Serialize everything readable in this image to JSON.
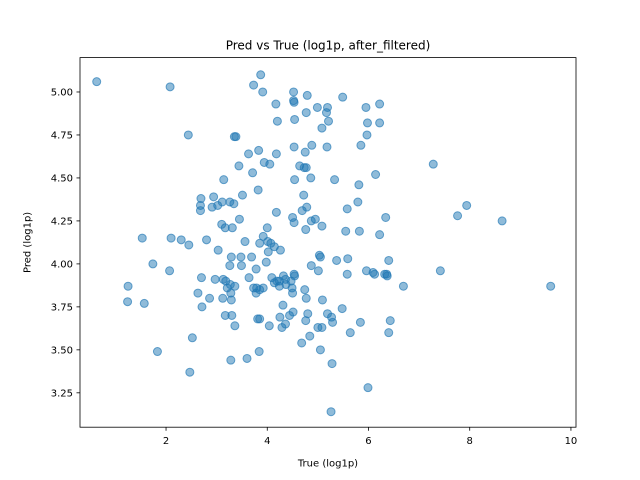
{
  "chart_data": {
    "type": "scatter",
    "title": "Pred vs True (log1p, after_filtered)",
    "xlabel": "True (log1p)",
    "ylabel": "Pred (log1p)",
    "xlim": [
      0.3,
      10.1
    ],
    "ylim": [
      3.05,
      5.2
    ],
    "xticks": [
      2,
      4,
      6,
      8,
      10
    ],
    "yticks": [
      3.25,
      3.5,
      3.75,
      4.0,
      4.25,
      4.5,
      4.75,
      5.0
    ],
    "xtick_labels": [
      "2",
      "4",
      "6",
      "8",
      "10"
    ],
    "ytick_labels": [
      "3.25",
      "3.50",
      "3.75",
      "4.00",
      "4.25",
      "4.50",
      "4.75",
      "5.00"
    ],
    "grid": false,
    "marker_color": "#1f77b4",
    "marker_alpha": 0.5,
    "points": [
      [
        0.63,
        5.06
      ],
      [
        2.08,
        5.03
      ],
      [
        3.87,
        5.1
      ],
      [
        3.73,
        5.04
      ],
      [
        3.91,
        5.0
      ],
      [
        4.52,
        5.0
      ],
      [
        4.79,
        4.98
      ],
      [
        5.49,
        4.97
      ],
      [
        4.52,
        4.95
      ],
      [
        4.17,
        4.93
      ],
      [
        4.53,
        4.94
      ],
      [
        4.99,
        4.91
      ],
      [
        5.19,
        4.91
      ],
      [
        5.95,
        4.91
      ],
      [
        6.22,
        4.93
      ],
      [
        4.77,
        4.88
      ],
      [
        5.17,
        4.88
      ],
      [
        4.2,
        4.83
      ],
      [
        4.54,
        4.84
      ],
      [
        5.21,
        4.83
      ],
      [
        5.98,
        4.82
      ],
      [
        6.22,
        4.82
      ],
      [
        5.08,
        4.79
      ],
      [
        2.44,
        4.75
      ],
      [
        3.35,
        4.74
      ],
      [
        3.38,
        4.74
      ],
      [
        5.97,
        4.75
      ],
      [
        4.88,
        4.69
      ],
      [
        5.85,
        4.69
      ],
      [
        4.53,
        4.68
      ],
      [
        5.18,
        4.68
      ],
      [
        3.83,
        4.66
      ],
      [
        4.75,
        4.65
      ],
      [
        4.18,
        4.64
      ],
      [
        3.63,
        4.64
      ],
      [
        3.44,
        4.57
      ],
      [
        3.94,
        4.59
      ],
      [
        4.05,
        4.58
      ],
      [
        4.64,
        4.57
      ],
      [
        4.77,
        4.56
      ],
      [
        4.73,
        4.56
      ],
      [
        3.71,
        4.53
      ],
      [
        6.14,
        4.52
      ],
      [
        7.28,
        4.58
      ],
      [
        4.86,
        4.5
      ],
      [
        4.54,
        4.49
      ],
      [
        5.33,
        4.49
      ],
      [
        5.81,
        4.46
      ],
      [
        3.14,
        4.49
      ],
      [
        3.51,
        4.4
      ],
      [
        4.72,
        4.4
      ],
      [
        3.82,
        4.43
      ],
      [
        2.69,
        4.38
      ],
      [
        2.94,
        4.39
      ],
      [
        3.11,
        4.36
      ],
      [
        3.26,
        4.36
      ],
      [
        2.91,
        4.33
      ],
      [
        3.02,
        4.34
      ],
      [
        2.68,
        4.31
      ],
      [
        2.68,
        4.34
      ],
      [
        3.34,
        4.35
      ],
      [
        4.69,
        4.31
      ],
      [
        4.78,
        4.33
      ],
      [
        5.58,
        4.32
      ],
      [
        5.79,
        4.36
      ],
      [
        6.34,
        4.27
      ],
      [
        7.94,
        4.34
      ],
      [
        7.76,
        4.28
      ],
      [
        8.64,
        4.25
      ],
      [
        4.18,
        4.3
      ],
      [
        4.5,
        4.27
      ],
      [
        4.95,
        4.26
      ],
      [
        4.87,
        4.25
      ],
      [
        3.45,
        4.26
      ],
      [
        3.1,
        4.23
      ],
      [
        3.17,
        4.21
      ],
      [
        3.31,
        4.21
      ],
      [
        4.0,
        4.21
      ],
      [
        4.53,
        4.24
      ],
      [
        5.08,
        4.22
      ],
      [
        4.76,
        4.2
      ],
      [
        5.55,
        4.19
      ],
      [
        5.82,
        4.19
      ],
      [
        6.22,
        4.17
      ],
      [
        1.53,
        4.15
      ],
      [
        2.1,
        4.15
      ],
      [
        2.3,
        4.14
      ],
      [
        2.8,
        4.14
      ],
      [
        3.92,
        4.16
      ],
      [
        4.01,
        4.13
      ],
      [
        3.56,
        4.13
      ],
      [
        3.85,
        4.12
      ],
      [
        4.07,
        4.12
      ],
      [
        4.14,
        4.1
      ],
      [
        4.26,
        4.08
      ],
      [
        4.02,
        4.07
      ],
      [
        2.45,
        4.11
      ],
      [
        3.03,
        4.08
      ],
      [
        3.29,
        4.04
      ],
      [
        3.48,
        4.04
      ],
      [
        3.69,
        4.04
      ],
      [
        5.03,
        4.05
      ],
      [
        5.05,
        4.04
      ],
      [
        3.98,
        4.01
      ],
      [
        5.37,
        4.02
      ],
      [
        5.59,
        4.03
      ],
      [
        6.4,
        4.02
      ],
      [
        4.87,
        3.99
      ],
      [
        3.26,
        3.99
      ],
      [
        3.49,
        3.99
      ],
      [
        2.07,
        3.96
      ],
      [
        1.74,
        4.0
      ],
      [
        3.78,
        3.97
      ],
      [
        5.01,
        3.96
      ],
      [
        5.96,
        3.96
      ],
      [
        6.09,
        3.95
      ],
      [
        6.12,
        3.94
      ],
      [
        6.32,
        3.94
      ],
      [
        6.36,
        3.94
      ],
      [
        6.37,
        3.93
      ],
      [
        7.42,
        3.96
      ],
      [
        5.58,
        3.94
      ],
      [
        4.53,
        3.94
      ],
      [
        4.54,
        3.93
      ],
      [
        4.32,
        3.93
      ],
      [
        4.36,
        3.91
      ],
      [
        4.47,
        3.9
      ],
      [
        4.19,
        3.9
      ],
      [
        4.09,
        3.92
      ],
      [
        4.24,
        3.9
      ],
      [
        4.14,
        3.89
      ],
      [
        3.64,
        3.92
      ],
      [
        3.13,
        3.91
      ],
      [
        3.18,
        3.9
      ],
      [
        2.97,
        3.91
      ],
      [
        2.7,
        3.92
      ],
      [
        3.27,
        3.88
      ],
      [
        3.36,
        3.87
      ],
      [
        3.73,
        3.86
      ],
      [
        3.79,
        3.86
      ],
      [
        3.85,
        3.85
      ],
      [
        3.92,
        3.86
      ],
      [
        4.24,
        3.87
      ],
      [
        4.37,
        3.88
      ],
      [
        4.49,
        3.86
      ],
      [
        4.74,
        3.85
      ],
      [
        4.5,
        3.83
      ],
      [
        3.78,
        3.83
      ],
      [
        3.21,
        3.86
      ],
      [
        3.28,
        3.83
      ],
      [
        2.63,
        3.83
      ],
      [
        2.86,
        3.8
      ],
      [
        3.12,
        3.8
      ],
      [
        3.29,
        3.79
      ],
      [
        1.25,
        3.87
      ],
      [
        6.69,
        3.87
      ],
      [
        9.6,
        3.87
      ],
      [
        1.24,
        3.78
      ],
      [
        1.57,
        3.77
      ],
      [
        2.71,
        3.75
      ],
      [
        4.31,
        3.76
      ],
      [
        5.09,
        3.79
      ],
      [
        4.77,
        3.8
      ],
      [
        5.48,
        3.74
      ],
      [
        4.51,
        3.72
      ],
      [
        4.8,
        3.71
      ],
      [
        5.19,
        3.71
      ],
      [
        5.27,
        3.69
      ],
      [
        3.17,
        3.7
      ],
      [
        3.3,
        3.7
      ],
      [
        3.81,
        3.68
      ],
      [
        3.85,
        3.68
      ],
      [
        4.25,
        3.69
      ],
      [
        4.36,
        3.65
      ],
      [
        4.29,
        3.63
      ],
      [
        4.44,
        3.7
      ],
      [
        4.76,
        3.67
      ],
      [
        5.0,
        3.63
      ],
      [
        5.08,
        3.63
      ],
      [
        5.29,
        3.66
      ],
      [
        5.84,
        3.66
      ],
      [
        6.43,
        3.67
      ],
      [
        6.4,
        3.6
      ],
      [
        5.64,
        3.6
      ],
      [
        3.36,
        3.64
      ],
      [
        4.04,
        3.64
      ],
      [
        4.84,
        3.58
      ],
      [
        2.52,
        3.57
      ],
      [
        4.68,
        3.54
      ],
      [
        3.6,
        3.45
      ],
      [
        3.28,
        3.44
      ],
      [
        3.84,
        3.49
      ],
      [
        5.05,
        3.5
      ],
      [
        1.83,
        3.49
      ],
      [
        5.28,
        3.42
      ],
      [
        2.47,
        3.37
      ],
      [
        5.99,
        3.28
      ],
      [
        5.26,
        3.14
      ]
    ]
  }
}
